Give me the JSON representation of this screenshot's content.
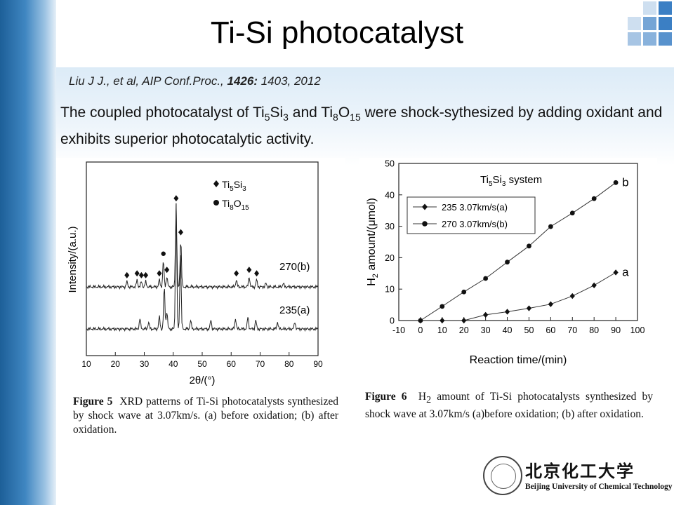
{
  "slide": {
    "title": "Ti-Si photocatalyst",
    "citation": {
      "prefix": "Liu J J., et al, AIP Conf.Proc., ",
      "volume": "1426:",
      "rest": " 1403, 2012"
    },
    "description": {
      "p1": "The coupled photocatalyst of Ti",
      "s1": "5",
      "p2": "Si",
      "s2": "3",
      "p3": " and Ti",
      "s3": "8",
      "p4": "O",
      "s4": "15",
      "p5": " were shock-sythesized by adding oxidant and exhibits superior photocatalytic activity."
    },
    "accent_colors": {
      "sidebar": "#2a6fae",
      "squares": "#3b7fc4"
    },
    "university": {
      "name_cn": "北京化工大学",
      "name_en": "Beijing University of Chemical Technology"
    }
  },
  "chart_data": [
    {
      "type": "line",
      "figure_label": "Figure 5",
      "caption": "XRD patterns of Ti-Si photocatalysts synthesized by shock wave at 3.07km/s. (a) before oxidation; (b) after oxidation.",
      "xlabel": "2θ/(°)",
      "ylabel": "Intensity/(a.u.)",
      "xlim": [
        10,
        90
      ],
      "xticks": [
        10,
        20,
        30,
        40,
        50,
        60,
        70,
        80,
        90
      ],
      "legend": {
        "placement": "top-right",
        "entries": [
          {
            "name": "Ti5Si3",
            "base": "Ti",
            "sub1": "5",
            "mid": "Si",
            "sub2": "3",
            "marker": "diamond"
          },
          {
            "name": "Ti8O15",
            "base": "Ti",
            "sub1": "8",
            "mid": "O",
            "sub2": "15",
            "marker": "circle"
          }
        ]
      },
      "series": [
        {
          "name": "235(a)",
          "peaks": [
            {
              "x": 28.5,
              "h": 0.06
            },
            {
              "x": 31.5,
              "h": 0.04
            },
            {
              "x": 35.2,
              "h": 0.07
            },
            {
              "x": 36.9,
              "h": 0.24
            },
            {
              "x": 37.8,
              "h": 0.1
            },
            {
              "x": 41.0,
              "h": 0.7
            },
            {
              "x": 42.5,
              "h": 0.42
            },
            {
              "x": 46.0,
              "h": 0.05
            },
            {
              "x": 53.0,
              "h": 0.05
            },
            {
              "x": 61.5,
              "h": 0.06
            },
            {
              "x": 65.8,
              "h": 0.07
            },
            {
              "x": 68.5,
              "h": 0.05
            },
            {
              "x": 76.0,
              "h": 0.04
            },
            {
              "x": 82.0,
              "h": 0.04
            }
          ]
        },
        {
          "name": "270(b)",
          "peaks": [
            {
              "x": 24.0,
              "h": 0.03
            },
            {
              "x": 27.5,
              "h": 0.04
            },
            {
              "x": 29.0,
              "h": 0.03
            },
            {
              "x": 30.5,
              "h": 0.03
            },
            {
              "x": 35.2,
              "h": 0.04
            },
            {
              "x": 36.6,
              "h": 0.15
            },
            {
              "x": 37.8,
              "h": 0.06
            },
            {
              "x": 41.0,
              "h": 0.46
            },
            {
              "x": 42.6,
              "h": 0.27
            },
            {
              "x": 61.8,
              "h": 0.04
            },
            {
              "x": 66.2,
              "h": 0.06
            },
            {
              "x": 68.8,
              "h": 0.04
            },
            {
              "x": 72.0,
              "h": 0.02
            },
            {
              "x": 78.0,
              "h": 0.02
            }
          ]
        }
      ],
      "markers": [
        {
          "series": "270(b)",
          "x": 24.0,
          "shape": "diamond"
        },
        {
          "series": "270(b)",
          "x": 27.5,
          "shape": "diamond"
        },
        {
          "series": "270(b)",
          "x": 29.0,
          "shape": "diamond"
        },
        {
          "series": "270(b)",
          "x": 30.5,
          "shape": "diamond"
        },
        {
          "series": "270(b)",
          "x": 35.2,
          "shape": "diamond"
        },
        {
          "series": "270(b)",
          "x": 36.6,
          "shape": "circle"
        },
        {
          "series": "270(b)",
          "x": 37.8,
          "shape": "diamond"
        },
        {
          "series": "270(b)",
          "x": 41.0,
          "shape": "diamond"
        },
        {
          "series": "270(b)",
          "x": 42.6,
          "shape": "diamond"
        },
        {
          "series": "270(b)",
          "x": 61.8,
          "shape": "diamond"
        },
        {
          "series": "270(b)",
          "x": 66.2,
          "shape": "diamond"
        },
        {
          "series": "270(b)",
          "x": 68.8,
          "shape": "diamond"
        }
      ]
    },
    {
      "type": "line",
      "figure_label": "Figure 6",
      "caption_parts": {
        "before": "H",
        "sub": "2",
        "after": " amount of Ti-Si photocatalysts synthesized by shock wave at 3.07km/s (a)before oxidation; (b) after oxidation."
      },
      "inset_title": {
        "base": "Ti",
        "sub1": "5",
        "mid": "Si",
        "sub2": "3",
        "rest": " system"
      },
      "xlabel": "Reaction time/(min)",
      "ylabel": {
        "p1": "H",
        "sub": "2",
        "p2": " amount/(",
        "mu": "μ",
        "p3": "mol)"
      },
      "xlim": [
        -10,
        100
      ],
      "ylim": [
        0,
        50
      ],
      "xticks": [
        -10,
        0,
        10,
        20,
        30,
        40,
        50,
        60,
        70,
        80,
        90,
        100
      ],
      "yticks": [
        0,
        10,
        20,
        30,
        40,
        50
      ],
      "legend": {
        "placement": "top-left"
      },
      "series": [
        {
          "name": "235 3.07km/s(a)",
          "label": "a",
          "marker": "diamond",
          "x": [
            0,
            10,
            20,
            30,
            40,
            50,
            60,
            70,
            80,
            90
          ],
          "values": [
            0,
            0,
            0,
            1.8,
            2.8,
            3.9,
            5.2,
            7.8,
            11.2,
            15.3
          ]
        },
        {
          "name": "270 3.07km/s(b)",
          "label": "b",
          "marker": "circle",
          "x": [
            0,
            10,
            20,
            30,
            40,
            50,
            60,
            70,
            80,
            90
          ],
          "values": [
            0,
            4.5,
            9.1,
            13.4,
            18.6,
            23.7,
            29.9,
            34.2,
            38.8,
            43.9
          ]
        }
      ]
    }
  ]
}
